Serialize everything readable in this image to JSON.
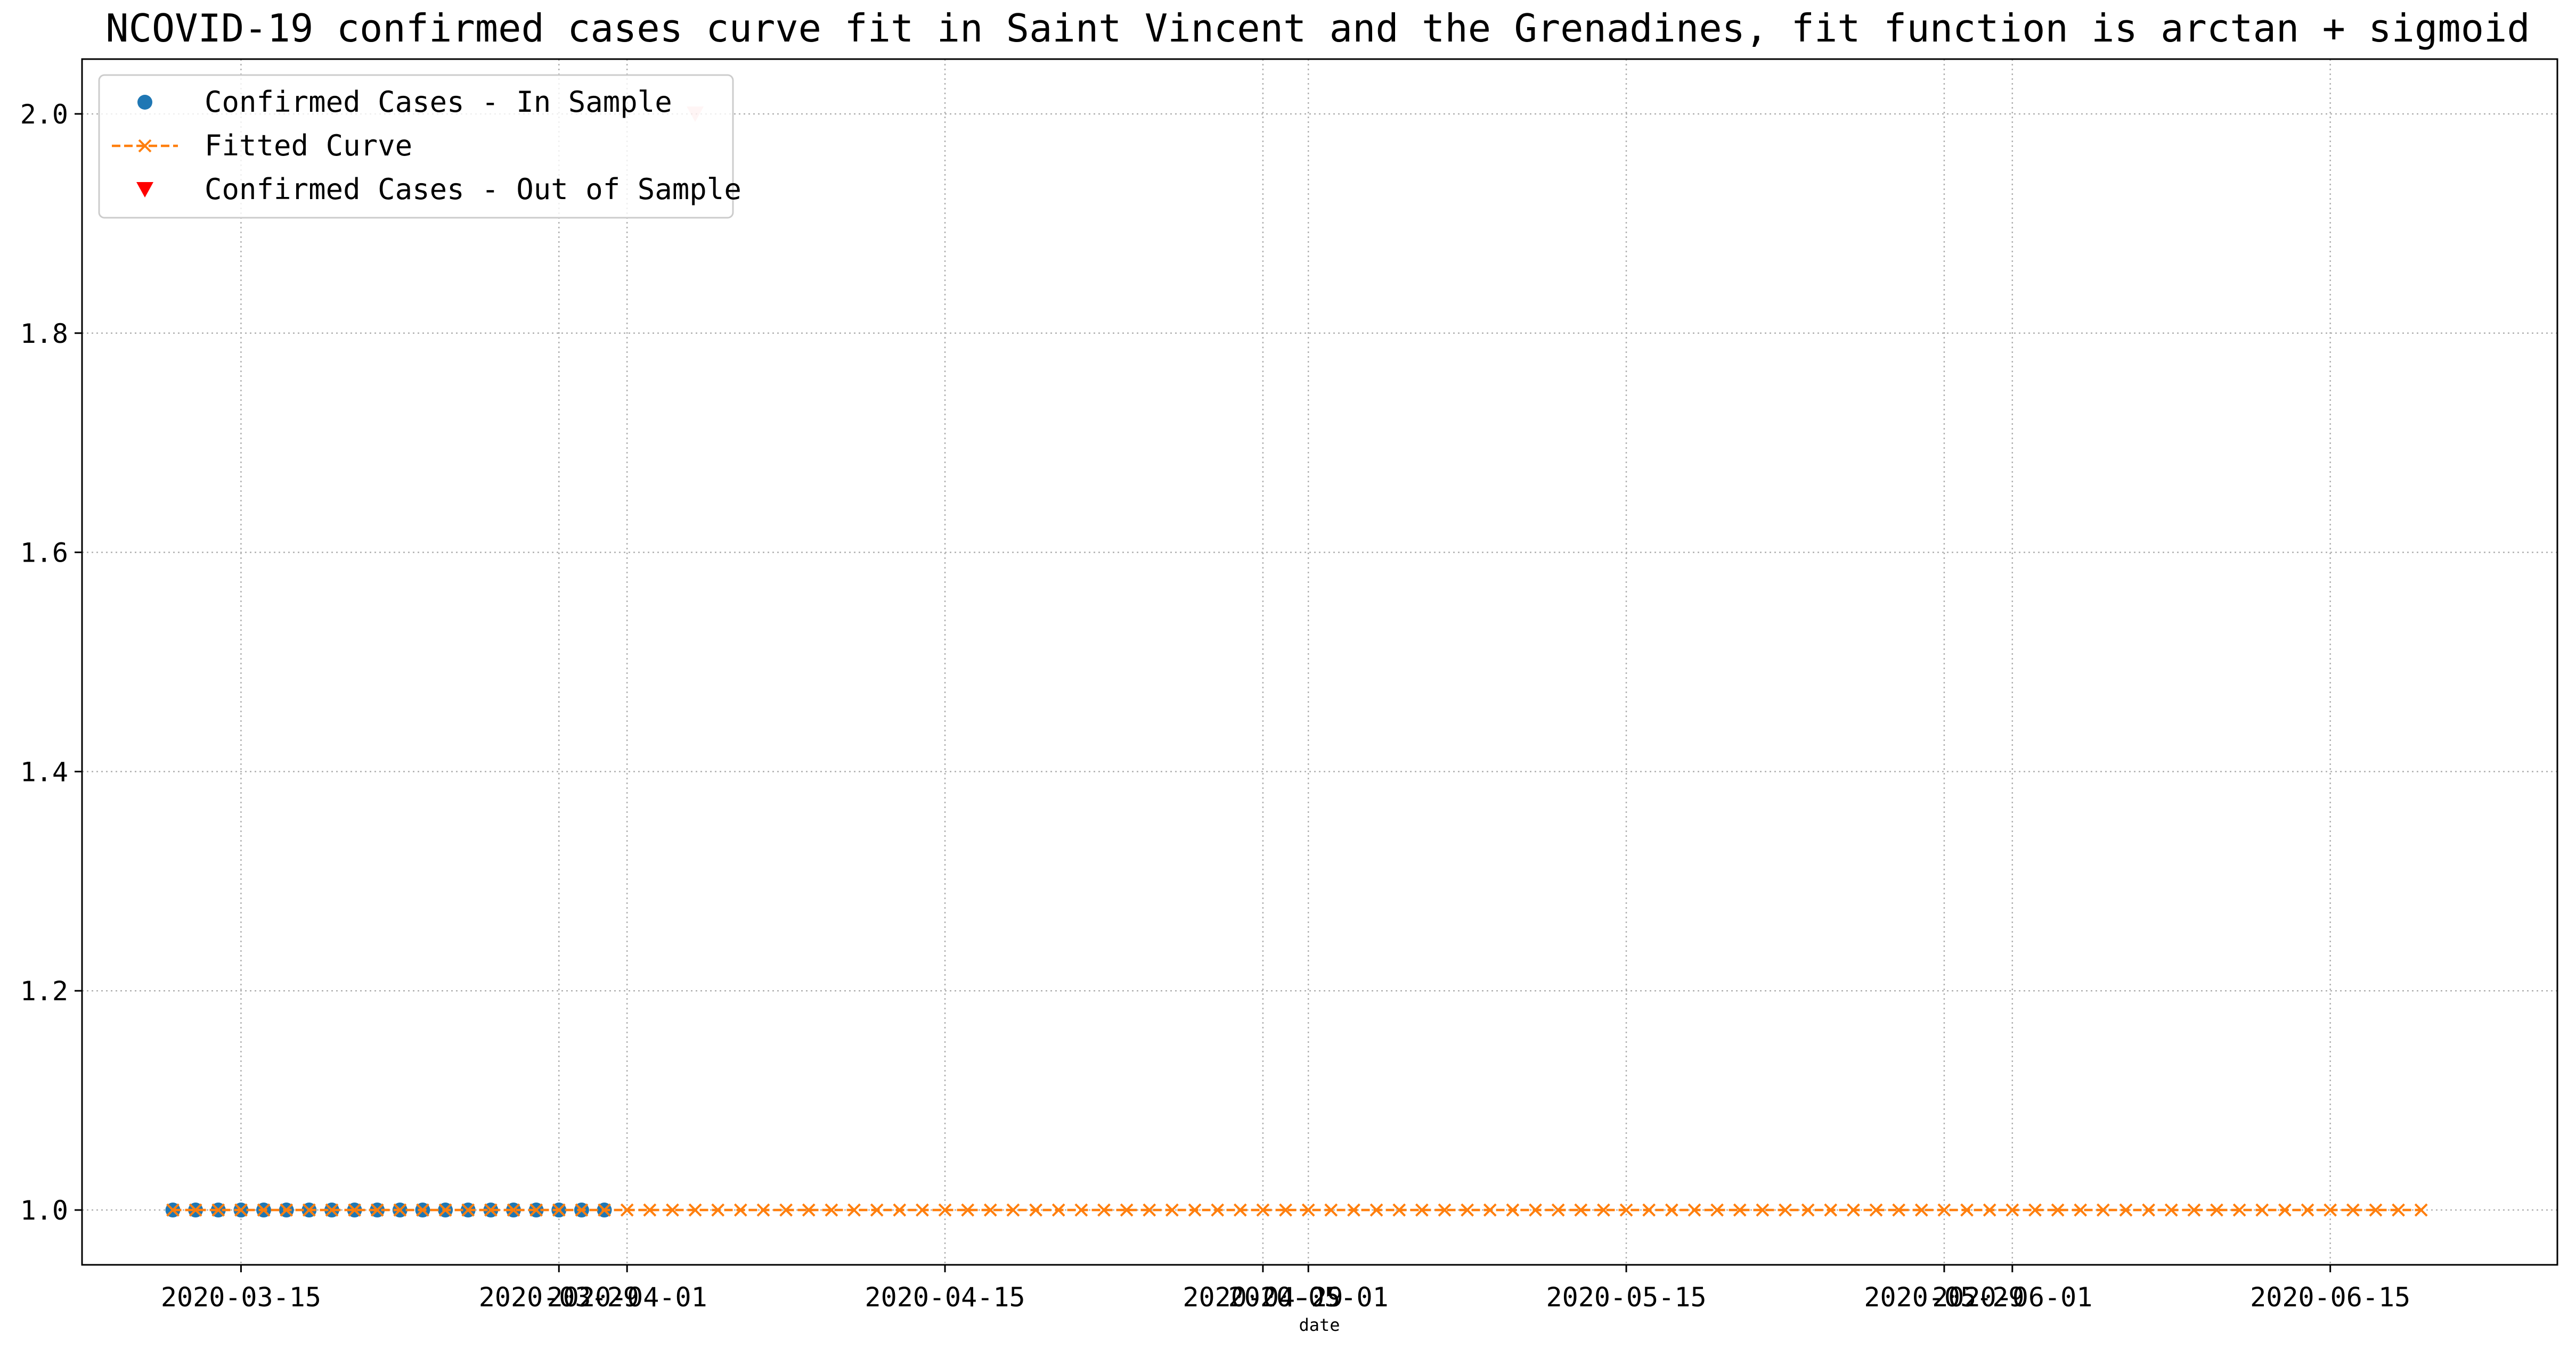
{
  "chart_data": {
    "type": "scatter",
    "title": "NCOVID-19 confirmed cases curve fit in Saint Vincent and the Grenadines, fit function is arctan + sigmoid",
    "xlabel": "date",
    "ylabel": "",
    "xlim": [
      "2020-03-08",
      "2020-06-25"
    ],
    "ylim": [
      0.95,
      2.05
    ],
    "yticks": [
      1.0,
      1.2,
      1.4,
      1.6,
      1.8,
      2.0
    ],
    "ytick_labels": [
      "1.0",
      "1.2",
      "1.4",
      "1.6",
      "1.8",
      "2.0"
    ],
    "xticks": [
      "2020-03-15",
      "2020-03-29",
      "2020-04-01",
      "2020-04-15",
      "2020-04-29",
      "2020-05-01",
      "2020-05-15",
      "2020-05-29",
      "2020-06-01",
      "2020-06-15"
    ],
    "xtick_labels": [
      "2020-03-15",
      "2020-03-29",
      "2020-04-01",
      "2020-04-15",
      "2020-04-29",
      "2020-05-01",
      "2020-05-15",
      "2020-05-29",
      "2020-06-01",
      "2020-06-15"
    ],
    "grid": true,
    "legend_position": "top-left",
    "series": [
      {
        "name": "Confirmed Cases - In Sample",
        "marker": "circle",
        "color": "#1f77b4",
        "start_date": "2020-03-12",
        "values": [
          1,
          1,
          1,
          1,
          1,
          1,
          1,
          1,
          1,
          1,
          1,
          1,
          1,
          1,
          1,
          1,
          1,
          1,
          1,
          1
        ]
      },
      {
        "name": "Fitted Curve",
        "marker": "x",
        "linestyle": "dashed",
        "color": "#ff7f0e",
        "start_date": "2020-03-12",
        "values": [
          1,
          1,
          1,
          1,
          1,
          1,
          1,
          1,
          1,
          1,
          1,
          1,
          1,
          1,
          1,
          1,
          1,
          1,
          1,
          1,
          1,
          1,
          1,
          1,
          1,
          1,
          1,
          1,
          1,
          1,
          1,
          1,
          1,
          1,
          1,
          1,
          1,
          1,
          1,
          1,
          1,
          1,
          1,
          1,
          1,
          1,
          1,
          1,
          1,
          1,
          1,
          1,
          1,
          1,
          1,
          1,
          1,
          1,
          1,
          1,
          1,
          1,
          1,
          1,
          1,
          1,
          1,
          1,
          1,
          1,
          1,
          1,
          1,
          1,
          1,
          1,
          1,
          1,
          1,
          1,
          1,
          1,
          1,
          1,
          1,
          1,
          1,
          1,
          1,
          1,
          1,
          1,
          1,
          1,
          1,
          1,
          1,
          1,
          1,
          1
        ]
      },
      {
        "name": "Confirmed Cases - Out of Sample",
        "marker": "triangle-down",
        "color": "#ff0000",
        "alpha": 0.2,
        "x": [
          "2020-04-04"
        ],
        "values": [
          2
        ]
      }
    ]
  }
}
